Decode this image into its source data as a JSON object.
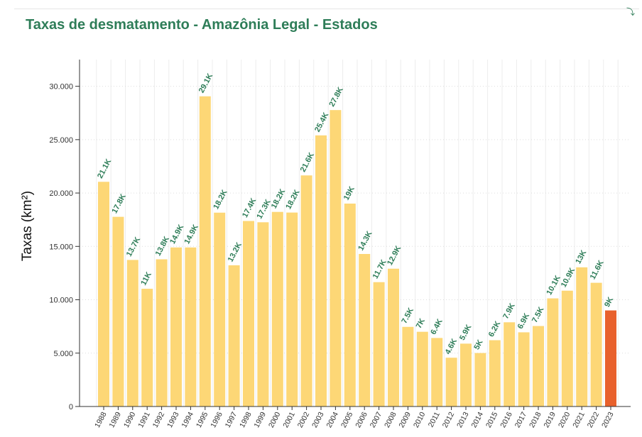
{
  "chart_data": {
    "type": "bar",
    "title": "Taxas de desmatamento - Amazônia Legal - Estados",
    "ylabel": "Taxas (km²)",
    "xlabel": "",
    "ylim": [
      0,
      32500
    ],
    "yticks": [
      0,
      5000,
      10000,
      15000,
      20000,
      25000,
      30000
    ],
    "ytick_labels": [
      "0",
      "5.000",
      "10.000",
      "15.000",
      "20.000",
      "25.000",
      "30.000"
    ],
    "grid": "vertical",
    "categories": [
      "1988",
      "1989",
      "1990",
      "1991",
      "1992",
      "1993",
      "1994",
      "1995",
      "1996",
      "1997",
      "1998",
      "1999",
      "2000",
      "2001",
      "2002",
      "2003",
      "2004",
      "2005",
      "2006",
      "2007",
      "2008",
      "2009",
      "2010",
      "2011",
      "2012",
      "2013",
      "2014",
      "2015",
      "2016",
      "2017",
      "2018",
      "2019",
      "2020",
      "2021",
      "2022",
      "2023"
    ],
    "values": [
      21050,
      17770,
      13730,
      11030,
      13790,
      14900,
      14900,
      29060,
      18160,
      13230,
      17380,
      17260,
      18230,
      18170,
      21650,
      25400,
      27770,
      19010,
      14290,
      11650,
      12910,
      7460,
      7000,
      6420,
      4570,
      5890,
      5010,
      6210,
      7890,
      6950,
      7540,
      10130,
      10850,
      13040,
      11590,
      9000
    ],
    "data_labels": [
      "21.1K",
      "17.8K",
      "13.7K",
      "11K",
      "13.8K",
      "14.9K",
      "14.9K",
      "29.1K",
      "18.2K",
      "13.2K",
      "17.4K",
      "17.3K",
      "18.2K",
      "18.2K",
      "21.6K",
      "25.4K",
      "27.8K",
      "19K",
      "14.3K",
      "11.7K",
      "12.9K",
      "7.5K",
      "7K",
      "6.4K",
      "4.6K",
      "5.9K",
      "5K",
      "6.2K",
      "7.9K",
      "6.9K",
      "7.5K",
      "10.1K",
      "10.9K",
      "13K",
      "11.6K",
      "9K"
    ],
    "colors": {
      "bar": "#fdd776",
      "highlight": "#e8612c",
      "label": "#2e7d58",
      "grid": "#ececec"
    },
    "highlight_index": 35
  },
  "ui": {
    "corner_icon": "download-icon"
  }
}
